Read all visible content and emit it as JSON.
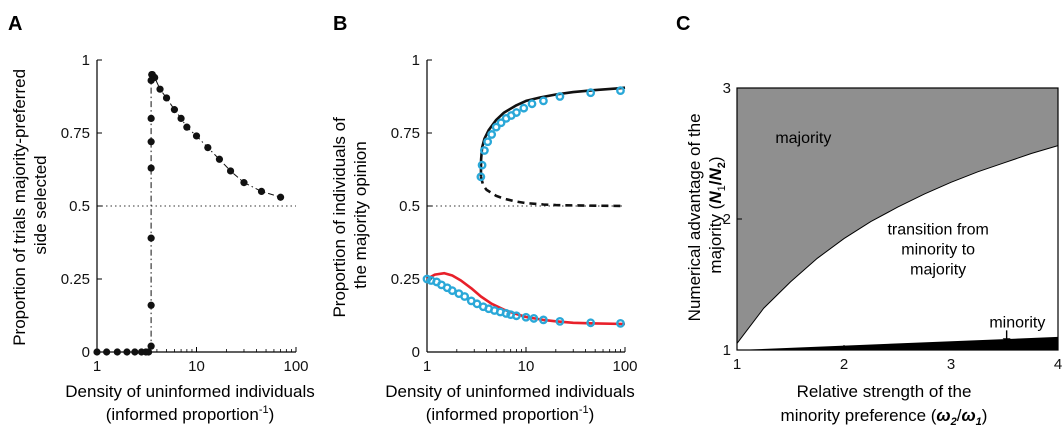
{
  "chart_data": [
    {
      "panel": "A",
      "type": "line",
      "x_scale": "log",
      "xlim": [
        1,
        100
      ],
      "ylim": [
        0,
        1
      ],
      "xticks": [
        1,
        10,
        100
      ],
      "yticks": [
        0,
        0.25,
        0.5,
        0.75,
        1
      ],
      "ytick_labels": [
        "0",
        "0.25",
        "0.5",
        "0.75",
        "1"
      ],
      "ylabel_lines": [
        "Proportion of trials majority-preferred",
        "side selected"
      ],
      "xlabel_line1": "Density of uninformed individuals",
      "xlabel_line2_pre": "(informed proportion",
      "xlabel_sup": "-1",
      "xlabel_line2_post": ")",
      "reference_y": 0.5,
      "series": [
        {
          "style": "dash-dot with markers",
          "color": "#111111",
          "x": [
            1,
            1.25,
            1.6,
            2,
            2.4,
            2.8,
            3.1,
            3.3,
            3.5,
            3.5,
            3.5,
            3.5,
            3.5,
            3.5,
            3.5,
            3.55,
            3.6,
            3.8,
            4.3,
            5,
            6,
            7,
            8,
            10,
            13,
            17,
            22,
            30,
            45,
            70
          ],
          "y": [
            0,
            0,
            0,
            0,
            0,
            0,
            0,
            0,
            0.02,
            0.16,
            0.39,
            0.63,
            0.72,
            0.8,
            0.93,
            0.95,
            0.95,
            0.94,
            0.9,
            0.87,
            0.83,
            0.8,
            0.77,
            0.74,
            0.7,
            0.66,
            0.62,
            0.58,
            0.55,
            0.53
          ]
        }
      ]
    },
    {
      "panel": "B",
      "type": "line",
      "x_scale": "log",
      "xlim": [
        1,
        100
      ],
      "ylim": [
        0,
        1
      ],
      "xticks": [
        1,
        10,
        100
      ],
      "yticks": [
        0,
        0.25,
        0.5,
        0.75,
        1
      ],
      "ytick_labels": [
        "0",
        "0.25",
        "0.5",
        "0.75",
        "1"
      ],
      "ylabel_lines": [
        "Proportion of individuals of",
        "the majority opinion"
      ],
      "xlabel_line1": "Density of uninformed individuals",
      "xlabel_line2_pre": "(informed proportion",
      "xlabel_sup": "-1",
      "xlabel_line2_post": ")",
      "reference_y": 0.5,
      "series": [
        {
          "style": "solid",
          "color": "#111111",
          "x": [
            3.5,
            3.52,
            3.6,
            3.8,
            4.2,
            5,
            6,
            8,
            10,
            14,
            20,
            30,
            50,
            80,
            100
          ],
          "y": [
            0.6,
            0.66,
            0.7,
            0.73,
            0.76,
            0.795,
            0.82,
            0.845,
            0.86,
            0.872,
            0.882,
            0.89,
            0.897,
            0.902,
            0.905
          ]
        },
        {
          "style": "dashed",
          "color": "#111111",
          "x": [
            3.5,
            3.7,
            4,
            5,
            6,
            8,
            10,
            15,
            20,
            30,
            50,
            100
          ],
          "y": [
            0.6,
            0.57,
            0.555,
            0.535,
            0.525,
            0.515,
            0.51,
            0.505,
            0.503,
            0.502,
            0.501,
            0.5
          ]
        },
        {
          "style": "solid",
          "color": "#e8202a",
          "x": [
            1,
            1.2,
            1.5,
            1.8,
            2.2,
            2.8,
            3.5,
            4.5,
            6,
            8,
            10,
            15,
            20,
            30,
            50,
            100
          ],
          "y": [
            0.25,
            0.265,
            0.27,
            0.262,
            0.245,
            0.218,
            0.19,
            0.165,
            0.145,
            0.13,
            0.12,
            0.11,
            0.105,
            0.1,
            0.098,
            0.096
          ]
        },
        {
          "style": "markers",
          "color": "#2aa8d8",
          "x": [
            3.5,
            3.6,
            3.8,
            4.1,
            4.5,
            5,
            5.6,
            6.3,
            7.1,
            8,
            9.5,
            11.5,
            15,
            22,
            45,
            90
          ],
          "y": [
            0.6,
            0.64,
            0.69,
            0.72,
            0.745,
            0.77,
            0.785,
            0.8,
            0.81,
            0.82,
            0.835,
            0.85,
            0.86,
            0.875,
            0.888,
            0.895
          ]
        },
        {
          "style": "markers",
          "color": "#2aa8d8",
          "x": [
            1,
            1.1,
            1.25,
            1.4,
            1.6,
            1.8,
            2.1,
            2.4,
            2.8,
            3.2,
            3.7,
            4.2,
            4.8,
            5.5,
            6.3,
            7,
            8,
            10,
            12,
            15,
            22,
            45,
            90
          ],
          "y": [
            0.25,
            0.245,
            0.24,
            0.23,
            0.22,
            0.21,
            0.2,
            0.19,
            0.175,
            0.165,
            0.155,
            0.148,
            0.142,
            0.137,
            0.132,
            0.128,
            0.124,
            0.119,
            0.115,
            0.11,
            0.105,
            0.1,
            0.098
          ]
        }
      ]
    },
    {
      "panel": "C",
      "type": "area",
      "xlim": [
        1,
        4
      ],
      "ylim": [
        1,
        3
      ],
      "xticks": [
        1,
        2,
        3,
        4
      ],
      "yticks": [
        1,
        2,
        3
      ],
      "ylabel_line1": "Numerical advantage of the",
      "ylabel_line2_pre": "majority (",
      "ylabel_N1": "N",
      "ylabel_sub1": "1",
      "ylabel_slash": "/",
      "ylabel_N2": "N",
      "ylabel_sub2": "2",
      "ylabel_line2_post": ")",
      "xlabel_line1": "Relative strength of the",
      "xlabel_line2_pre": "minority preference (",
      "xlabel_w2": "ω",
      "xlabel_w2sub": "2",
      "xlabel_slash": "/",
      "xlabel_w1": "ω",
      "xlabel_w1sub": "1",
      "xlabel_line2_post": ")",
      "boundary_majority": {
        "x": [
          1,
          1.25,
          1.5,
          1.75,
          2,
          2.25,
          2.5,
          2.75,
          3,
          3.25,
          3.5,
          3.75,
          4
        ],
        "y": [
          1.05,
          1.32,
          1.52,
          1.7,
          1.85,
          1.98,
          2.09,
          2.19,
          2.28,
          2.36,
          2.43,
          2.5,
          2.56
        ]
      },
      "boundary_minority": {
        "x": [
          1,
          4
        ],
        "y": [
          1,
          1.1
        ]
      },
      "regions": {
        "majority": "majority",
        "transition_lines": [
          "transition from",
          "minority to",
          "majority"
        ],
        "minority": "minority"
      },
      "colors": {
        "majority_fill": "#8f8f8f",
        "transition_fill": "#ffffff",
        "minority_fill": "#000000"
      }
    }
  ],
  "panel_letters": [
    "A",
    "B",
    "C"
  ]
}
